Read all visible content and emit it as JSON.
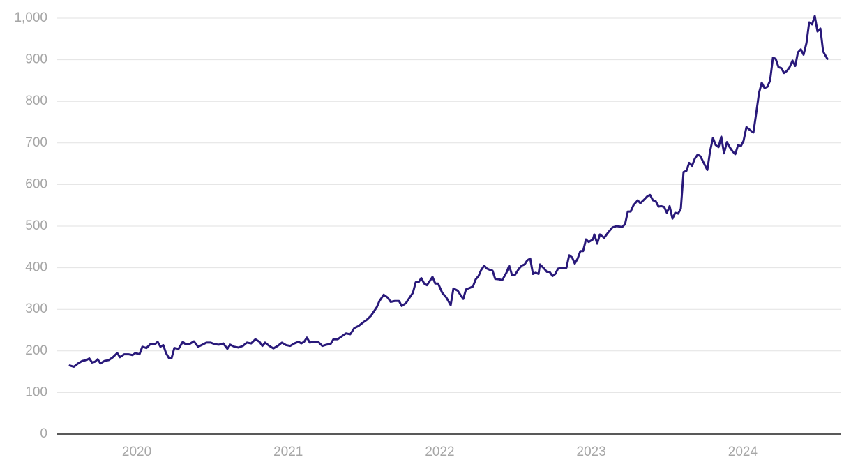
{
  "chart_data": {
    "type": "line",
    "color": "#29197a",
    "grid": true,
    "xlim": [
      2019.475,
      2024.645
    ],
    "xticks": [
      2020,
      2021,
      2022,
      2023,
      2024
    ],
    "ylim": [
      0,
      1000
    ],
    "yticks": [
      0,
      100,
      200,
      300,
      400,
      500,
      600,
      700,
      800,
      900,
      {
        "value": 1000,
        "label": "1,000"
      }
    ],
    "x": [
      2019.558,
      2019.585,
      2019.613,
      2019.641,
      2019.668,
      2019.687,
      2019.705,
      2019.724,
      2019.742,
      2019.76,
      2019.788,
      2019.816,
      2019.843,
      2019.871,
      2019.889,
      2019.917,
      2019.945,
      2019.972,
      2019.991,
      2020.018,
      2020.037,
      2020.064,
      2020.092,
      2020.12,
      2020.138,
      2020.156,
      2020.175,
      2020.193,
      2020.212,
      2020.23,
      2020.248,
      2020.276,
      2020.304,
      2020.322,
      2020.35,
      2020.377,
      2020.405,
      2020.433,
      2020.46,
      2020.488,
      2020.516,
      2020.543,
      2020.571,
      2020.598,
      2020.617,
      2020.644,
      2020.672,
      2020.7,
      2020.727,
      2020.755,
      2020.783,
      2020.81,
      2020.829,
      2020.847,
      2020.875,
      2020.902,
      2020.93,
      2020.958,
      2020.985,
      2021.013,
      2021.04,
      2021.068,
      2021.086,
      2021.105,
      2021.123,
      2021.142,
      2021.169,
      2021.197,
      2021.225,
      2021.252,
      2021.28,
      2021.298,
      2021.326,
      2021.353,
      2021.381,
      2021.409,
      2021.436,
      2021.464,
      2021.492,
      2021.519,
      2021.547,
      2021.584,
      2021.602,
      2021.63,
      2021.657,
      2021.676,
      2021.703,
      2021.731,
      2021.749,
      2021.777,
      2021.795,
      2021.823,
      2021.841,
      2021.86,
      2021.878,
      2021.897,
      2021.915,
      2021.934,
      2021.952,
      2021.97,
      2021.989,
      2022.016,
      2022.044,
      2022.072,
      2022.09,
      2022.118,
      2022.136,
      2022.155,
      2022.173,
      2022.201,
      2022.219,
      2022.237,
      2022.256,
      2022.274,
      2022.293,
      2022.311,
      2022.33,
      2022.348,
      2022.366,
      2022.394,
      2022.412,
      2022.44,
      2022.458,
      2022.477,
      2022.495,
      2022.523,
      2022.541,
      2022.56,
      2022.578,
      2022.597,
      2022.615,
      2022.633,
      2022.652,
      2022.661,
      2022.689,
      2022.707,
      2022.725,
      2022.744,
      2022.762,
      2022.781,
      2022.808,
      2022.836,
      2022.854,
      2022.873,
      2022.891,
      2022.91,
      2022.928,
      2022.946,
      2022.965,
      2022.983,
      2023.011,
      2023.02,
      2023.039,
      2023.057,
      2023.085,
      2023.112,
      2023.14,
      2023.167,
      2023.204,
      2023.223,
      2023.241,
      2023.26,
      2023.278,
      2023.306,
      2023.324,
      2023.352,
      2023.37,
      2023.388,
      2023.407,
      2023.425,
      2023.444,
      2023.462,
      2023.481,
      2023.499,
      2023.517,
      2023.536,
      2023.554,
      2023.573,
      2023.591,
      2023.609,
      2023.628,
      2023.646,
      2023.665,
      2023.683,
      2023.702,
      2023.72,
      2023.738,
      2023.766,
      2023.784,
      2023.803,
      2023.821,
      2023.84,
      2023.858,
      2023.876,
      2023.895,
      2023.913,
      2023.932,
      2023.95,
      2023.969,
      2023.987,
      2024.005,
      2024.024,
      2024.051,
      2024.07,
      2024.088,
      2024.107,
      2024.125,
      2024.143,
      2024.162,
      2024.18,
      2024.199,
      2024.217,
      2024.236,
      2024.254,
      2024.272,
      2024.291,
      2024.309,
      2024.328,
      2024.346,
      2024.364,
      2024.383,
      2024.401,
      2024.42,
      2024.438,
      2024.457,
      2024.475,
      2024.493,
      2024.512,
      2024.53,
      2024.558
    ],
    "values": [
      165,
      162,
      170,
      176,
      178,
      182,
      172,
      174,
      180,
      170,
      176,
      178,
      185,
      195,
      185,
      192,
      192,
      190,
      195,
      192,
      210,
      207,
      217,
      216,
      222,
      210,
      214,
      195,
      183,
      183,
      207,
      205,
      222,
      216,
      217,
      223,
      210,
      215,
      220,
      220,
      216,
      215,
      218,
      205,
      215,
      210,
      208,
      212,
      220,
      218,
      228,
      222,
      212,
      220,
      212,
      206,
      212,
      220,
      214,
      212,
      218,
      222,
      218,
      222,
      232,
      220,
      222,
      222,
      212,
      215,
      217,
      228,
      228,
      235,
      242,
      240,
      255,
      260,
      268,
      275,
      285,
      305,
      320,
      335,
      328,
      318,
      320,
      320,
      308,
      315,
      325,
      340,
      365,
      365,
      375,
      362,
      358,
      368,
      378,
      362,
      362,
      340,
      328,
      310,
      350,
      345,
      335,
      325,
      348,
      352,
      355,
      372,
      380,
      395,
      405,
      398,
      395,
      393,
      373,
      372,
      370,
      388,
      405,
      382,
      382,
      398,
      405,
      408,
      418,
      422,
      385,
      388,
      385,
      408,
      398,
      390,
      390,
      380,
      385,
      398,
      400,
      400,
      430,
      425,
      410,
      422,
      440,
      440,
      468,
      462,
      468,
      480,
      458,
      480,
      472,
      485,
      497,
      500,
      498,
      505,
      535,
      535,
      550,
      562,
      555,
      565,
      572,
      575,
      562,
      560,
      547,
      548,
      546,
      532,
      548,
      518,
      532,
      530,
      542,
      630,
      633,
      652,
      645,
      662,
      672,
      668,
      655,
      635,
      680,
      712,
      695,
      690,
      715,
      675,
      702,
      690,
      680,
      673,
      695,
      692,
      705,
      738,
      730,
      725,
      770,
      820,
      845,
      832,
      835,
      850,
      905,
      902,
      882,
      880,
      868,
      873,
      882,
      898,
      885,
      918,
      925,
      912,
      940,
      990,
      985,
      1005,
      968,
      975,
      920,
      902
    ]
  }
}
